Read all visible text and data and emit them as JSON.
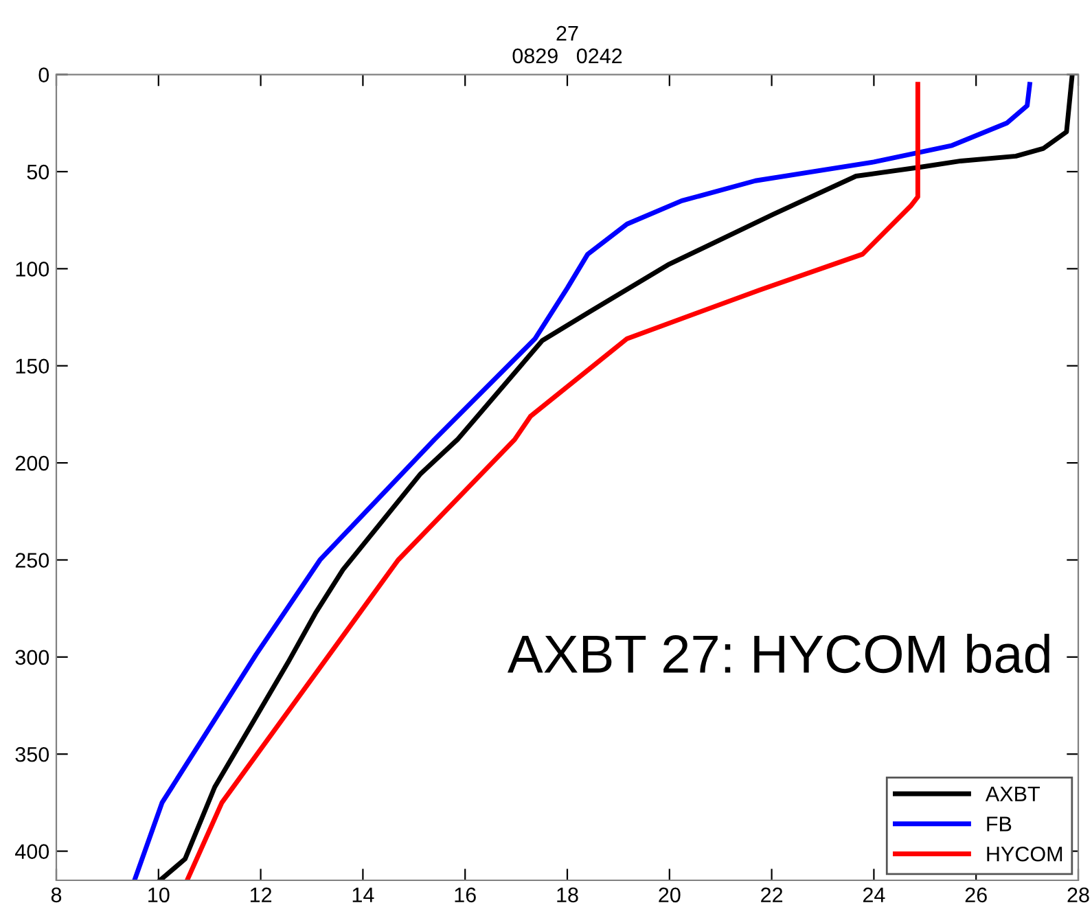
{
  "chart_data": {
    "type": "line",
    "title": "27\n0829   0242",
    "series": [
      {
        "name": "AXBT",
        "color": "#000000",
        "x": [
          27.88,
          27.77,
          27.32,
          26.78,
          25.7,
          24.9,
          23.65,
          22.03,
          19.97,
          18.45,
          17.51,
          15.85,
          15.13,
          13.61,
          13.07,
          12.53,
          11.86,
          11.1,
          10.52,
          10.03
        ],
        "values": [
          0.5,
          29.5,
          38,
          42,
          44.5,
          47.7,
          52.3,
          72,
          98,
          122,
          137,
          188,
          205.6,
          255,
          277.5,
          303,
          333,
          367,
          404,
          415
        ]
      },
      {
        "name": "FB",
        "color": "#0000ff",
        "x": [
          27.05,
          27.0,
          26.6,
          25.53,
          24.0,
          21.68,
          20.24,
          19.17,
          18.4,
          18.0,
          17.37,
          15.4,
          13.16,
          11.91,
          10.07,
          9.53
        ],
        "values": [
          5,
          16,
          25,
          36.5,
          45,
          54.7,
          65,
          77,
          92.5,
          110,
          136,
          188,
          250,
          298.7,
          375,
          415
        ]
      },
      {
        "name": "HYCOM",
        "color": "#ff0000",
        "x": [
          24.86,
          24.86,
          24.72,
          23.78,
          21.76,
          19.17,
          17.28,
          16.97,
          14.69,
          11.24,
          10.56
        ],
        "values": [
          5,
          63,
          67.7,
          92.5,
          111,
          136,
          176,
          188,
          250,
          375,
          415
        ]
      }
    ],
    "xlim": [
      8,
      28
    ],
    "xticks": [
      8,
      10,
      12,
      14,
      16,
      18,
      20,
      22,
      24,
      26,
      28
    ],
    "ylim": [
      415,
      0
    ],
    "yticks": [
      0,
      50,
      100,
      150,
      200,
      250,
      300,
      350,
      400
    ],
    "annotations": [
      "AXBT 27: HYCOM bad"
    ],
    "legend": "bottom right",
    "grid": false,
    "marker": "none",
    "line_style": "solid"
  }
}
